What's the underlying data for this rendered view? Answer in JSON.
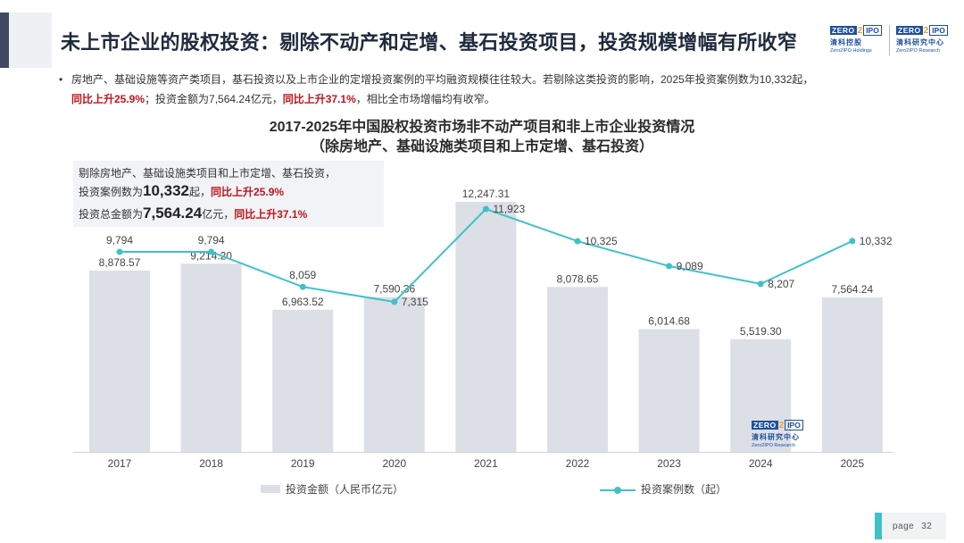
{
  "header": {
    "title": "未上市企业的股权投资：剔除不动产和定增、基石投资项目，投资规模增幅有所收窄",
    "logo1": {
      "zero": "ZERO",
      "two": "2",
      "ipo": "IPO",
      "cn": "清科控股",
      "en": "Zero2IPO Holdings"
    },
    "logo2": {
      "zero": "ZERO",
      "two": "2",
      "ipo": "IPO",
      "cn": "清科研究中心",
      "en": "Zero2IPO Research"
    }
  },
  "bullet": {
    "dot": "•",
    "line1": "房地产、基础设施等资产类项目，基石投资以及上市企业的定增投资案例的平均融资规模往往较大。若剔除这类投资的影响，2025年投资案例数为10,332起，",
    "red1": "同比上升25.9%",
    "mid": "；投资金额为7,564.24亿元，",
    "red2": "同比上升37.1%",
    "end": "，相比全市场增幅均有收窄。"
  },
  "note": {
    "line1": "剔除房地产、基础设施类项目和上市定增、基石投资，",
    "line2_pre": "投资案例数为",
    "line2_big": "10,332",
    "line2_unit": "起，",
    "line2_red": "同比上升25.9%",
    "line3_pre": "投资总金额为",
    "line3_big": "7,564.24",
    "line3_unit": "亿元，",
    "line3_red": "同比上升37.1%"
  },
  "chart_data": {
    "type": "bar+line",
    "title": "2017-2025年中国股权投资市场非不动产项目和非上市企业投资情况",
    "subtitle": "（除房地产、基础设施类项目和上市定增、基石投资）",
    "categories": [
      "2017",
      "2018",
      "2019",
      "2020",
      "2021",
      "2022",
      "2023",
      "2024",
      "2025"
    ],
    "series": [
      {
        "name": "投资金额（人民币亿元）",
        "type": "bar",
        "values": [
          8878.57,
          9214.2,
          6963.52,
          7590.36,
          12247.31,
          8078.65,
          6014.68,
          5519.3,
          7564.24
        ],
        "labels": [
          "8,878.57",
          "9,214.20",
          "6,963.52",
          "7,590.36",
          "12,247.31",
          "8,078.65",
          "6,014.68",
          "5,519.30",
          "7,564.24"
        ],
        "color": "#dcdfe6"
      },
      {
        "name": "投资案例数（起）",
        "type": "line",
        "values": [
          9794,
          9794,
          8059,
          7315,
          11923,
          10325,
          9089,
          8207,
          10332
        ],
        "labels": [
          "9,794",
          "9,794",
          "8,059",
          "7,315",
          "11,923",
          "10,325",
          "9,089",
          "8,207",
          "10,332"
        ],
        "color": "#3ec2c8"
      }
    ],
    "legend_position": "bottom",
    "grid": false
  },
  "watermark": {
    "zero": "ZERO",
    "two": "2",
    "ipo": "IPO",
    "cn": "清科研究中心",
    "en": "Zero2IPO Research"
  },
  "footer": {
    "page_label": "page",
    "page_number": "32"
  }
}
